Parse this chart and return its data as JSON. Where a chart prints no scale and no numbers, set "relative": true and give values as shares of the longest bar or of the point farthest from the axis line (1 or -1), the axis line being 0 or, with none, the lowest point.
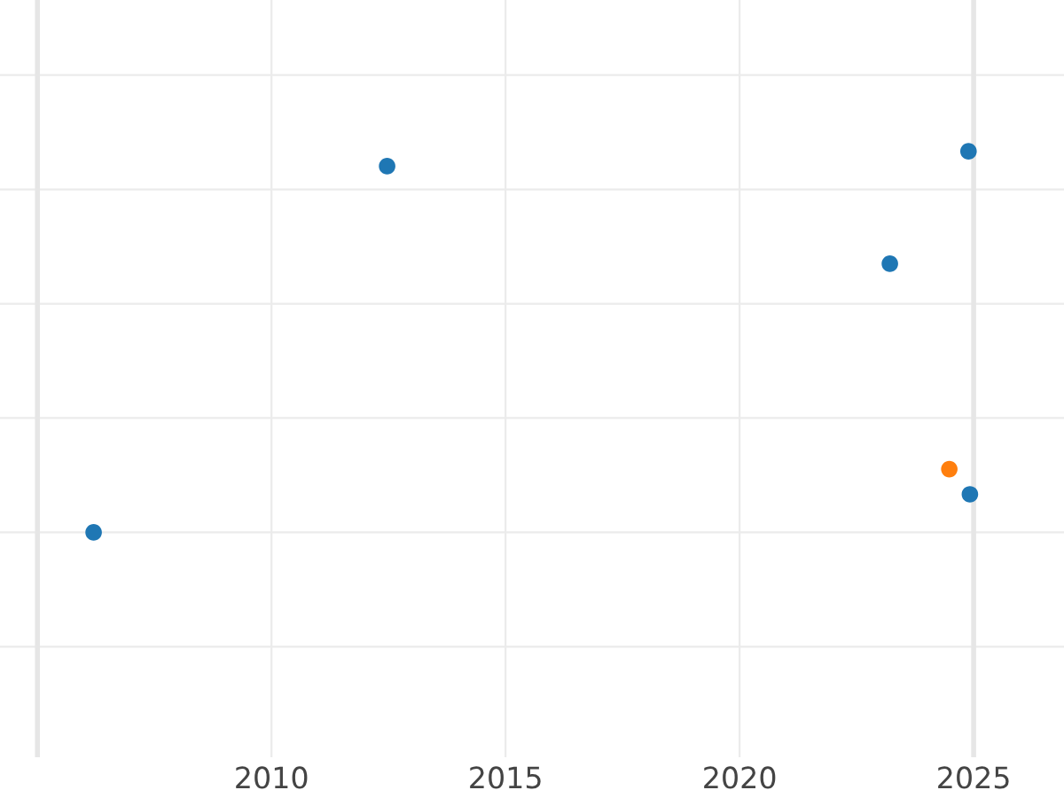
{
  "chart_data": {
    "type": "scatter",
    "relative": true,
    "grid": true,
    "marker": "circle",
    "xlim": [
      2004.2,
      2026.93
    ],
    "xticks": [
      2010,
      2015,
      2020,
      2025
    ],
    "ref_lines": [
      {
        "axis": "x",
        "value": 2005,
        "color": "#e6e6e6"
      },
      {
        "axis": "x",
        "value": 2025,
        "color": "#e6e6e6"
      }
    ],
    "series": [
      {
        "color": "#1f77b4",
        "x": [
          2006.2,
          2012.47,
          2023.21,
          2024.89,
          2024.92
        ],
        "values": [
          0,
          0.961,
          0.705,
          1,
          0.1
        ]
      },
      {
        "color": "#ff7f0e",
        "x": [
          2024.48
        ],
        "values": [
          0.166
        ]
      }
    ]
  }
}
